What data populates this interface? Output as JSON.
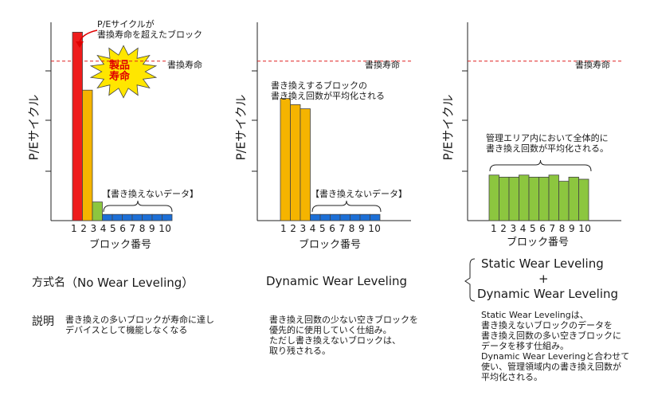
{
  "labels": {
    "scheme_name": "方式名",
    "description": "説明"
  },
  "charts": [
    {
      "y_label": "P/Eサイクル",
      "x_label": "ブロック番号",
      "limit_label": "書換寿命",
      "ticks": [
        "1",
        "2",
        "3",
        "4",
        "5",
        "6",
        "7",
        "8",
        "9",
        "10"
      ],
      "tick_text": "1 2 3 4 5 6 7 8 9 10",
      "values": [
        0.91,
        0.63,
        0.09,
        0.03,
        0.03,
        0.03,
        0.03,
        0.03,
        0.03,
        0.03
      ],
      "limit": 0.77,
      "colors": [
        "#ee1c1c",
        "#f5b400",
        "#8cc63f",
        "#1c6fd6",
        "#1c6fd6",
        "#1c6fd6",
        "#1c6fd6",
        "#1c6fd6",
        "#1c6fd6",
        "#1c6fd6"
      ],
      "callout": "P/Eサイクルが\n書換寿命を超えたブロック",
      "burst": "製品\n寿命",
      "brace_label": "【書き換えないデータ】",
      "scheme": "（No Wear Leveling）",
      "description": "書き換えの多いブロックが寿命に達し\nデバイスとして機能しなくなる"
    },
    {
      "y_label": "P/Eサイクル",
      "x_label": "ブロック番号",
      "limit_label": "書換寿命",
      "ticks": [
        "1",
        "2",
        "3",
        "4",
        "5",
        "6",
        "7",
        "8",
        "9",
        "10"
      ],
      "tick_text": "1 2 3 4 5 6 7 8 9 10",
      "values": [
        0.59,
        0.56,
        0.54,
        0.03,
        0.03,
        0.03,
        0.03,
        0.03,
        0.03,
        0.03
      ],
      "limit": 0.77,
      "colors": [
        "#f5b400",
        "#f5b400",
        "#f5b400",
        "#1c6fd6",
        "#1c6fd6",
        "#1c6fd6",
        "#1c6fd6",
        "#1c6fd6",
        "#1c6fd6",
        "#1c6fd6"
      ],
      "top_note": "書き換えするブロックの\n書き換え回数が平均化される",
      "brace_label": "【書き換えないデータ】",
      "scheme": "Dynamic Wear Leveling",
      "description": "書き換え回数の少ない空きブロックを\n優先的に使用していく仕組み。\nただし書き換えないブロックは、\n取り残される。"
    },
    {
      "y_label": "P/Eサイクル",
      "x_label": "ブロック番号",
      "limit_label": "書換寿命",
      "ticks": [
        "1",
        "2",
        "3",
        "4",
        "5",
        "6",
        "7",
        "8",
        "9",
        "10"
      ],
      "tick_text": "1 2 3 4 5 6 7 8 9 10",
      "values": [
        0.22,
        0.21,
        0.21,
        0.22,
        0.21,
        0.21,
        0.22,
        0.19,
        0.21,
        0.2
      ],
      "limit": 0.77,
      "colors": [
        "#8cc63f",
        "#8cc63f",
        "#8cc63f",
        "#8cc63f",
        "#8cc63f",
        "#8cc63f",
        "#8cc63f",
        "#8cc63f",
        "#8cc63f",
        "#8cc63f"
      ],
      "top_note": "管理エリア内において全体的に\n書き換え回数が平均化される。",
      "scheme_lines": [
        "Static Wear Leveling",
        "+",
        "Dynamic Wear Leveling"
      ],
      "description": "Static Wear Levelingは、\n書き換えないブロックのデータを\n書き換え回数の多い空きブロックに\nデータを移す仕組み。\nDynamic Wear Leveringと合わせて\n使い、管理領域内の書き換え回数が\n平均化される。"
    }
  ]
}
